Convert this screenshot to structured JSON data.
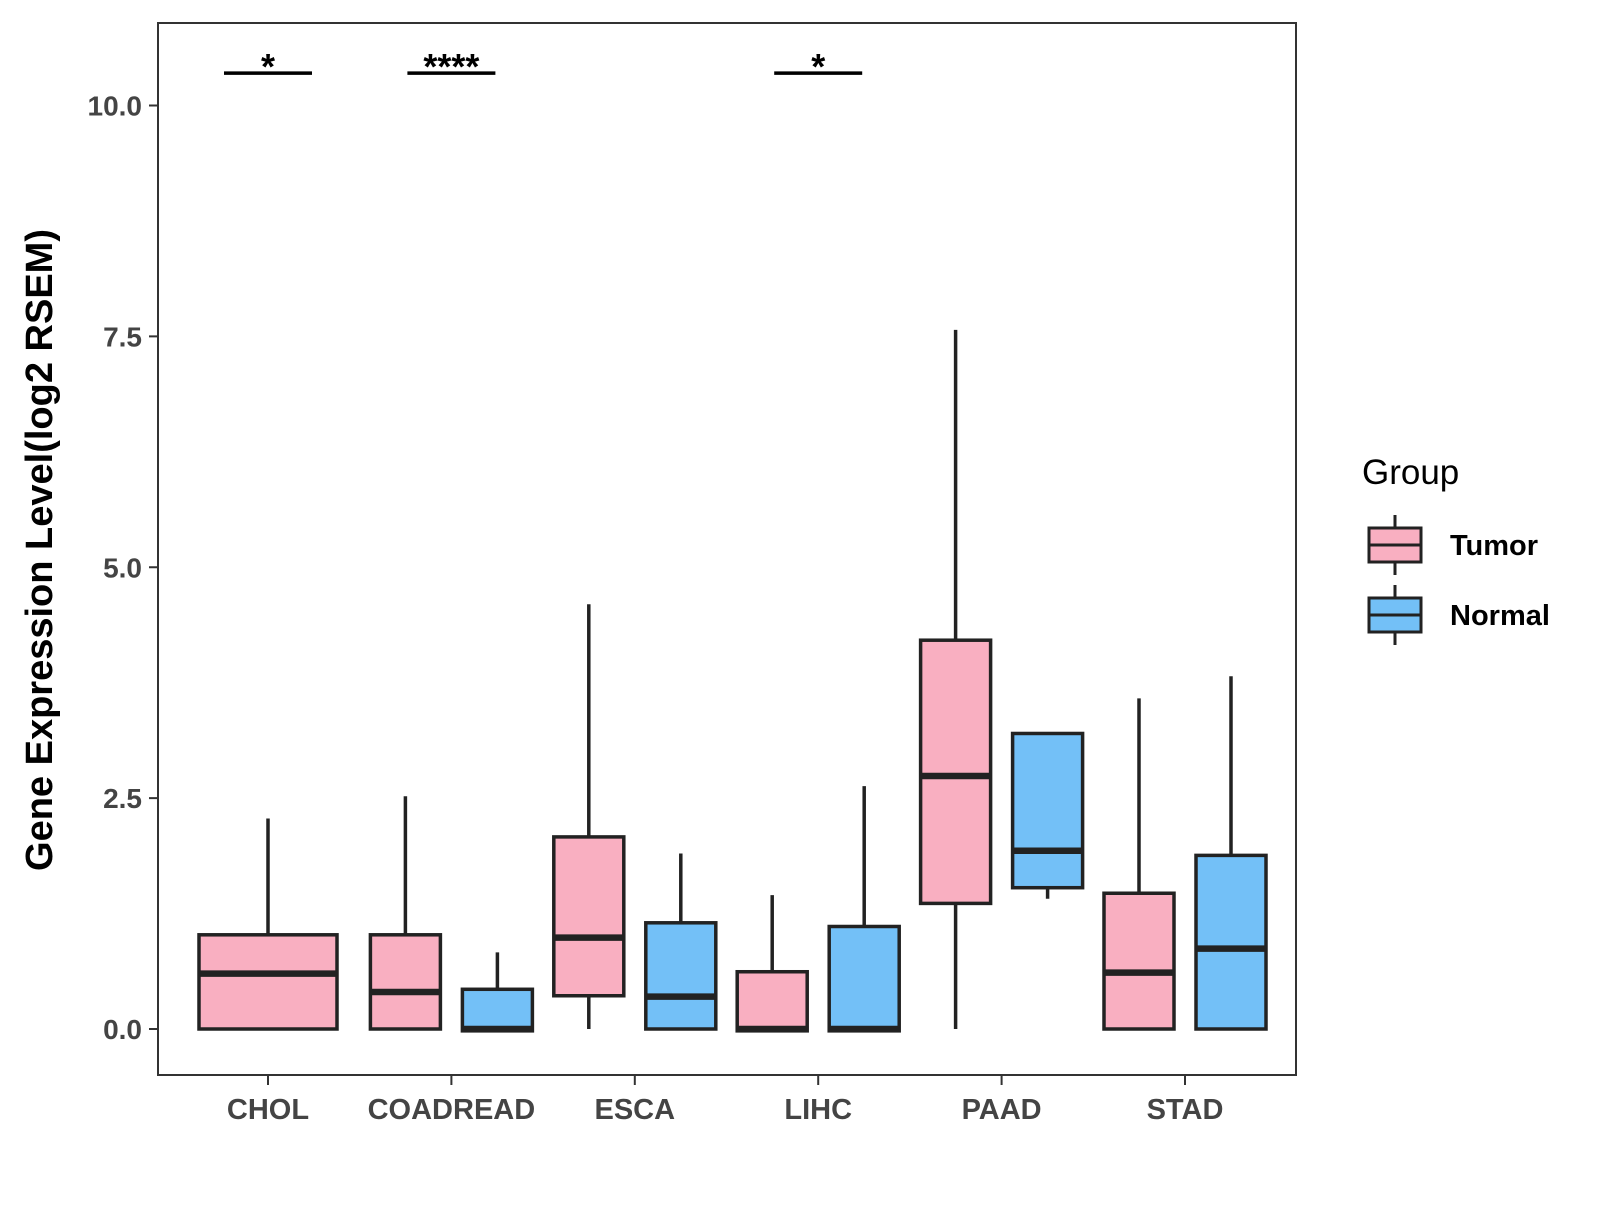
{
  "chart_data": {
    "type": "boxplot",
    "ylabel": "Gene Expression Level(log2 RSEM)",
    "xlabel": "",
    "ylim": [
      -0.5,
      10.8
    ],
    "yticks": [
      0.0,
      2.5,
      5.0,
      7.5,
      10.0
    ],
    "ytick_labels": [
      "0.0",
      "2.5",
      "5.0",
      "7.5",
      "10.0"
    ],
    "categories": [
      "CHOL",
      "COADREAD",
      "ESCA",
      "LIHC",
      "PAAD",
      "STAD"
    ],
    "legend": {
      "title": "Group",
      "position": "right",
      "entries": [
        {
          "name": "Tumor",
          "color": "#F9AFC1"
        },
        {
          "name": "Normal",
          "color": "#73C0F7"
        }
      ]
    },
    "boxes": [
      {
        "category": "CHOL",
        "group": "Tumor",
        "full_width": true,
        "whisker_low": 0.0,
        "q1": 0.0,
        "median": 0.6,
        "q3": 1.02,
        "whisker_high": 2.28
      },
      {
        "category": "COADREAD",
        "group": "Tumor",
        "whisker_low": 0.0,
        "q1": 0.0,
        "median": 0.4,
        "q3": 1.02,
        "whisker_high": 2.52
      },
      {
        "category": "COADREAD",
        "group": "Normal",
        "whisker_low": -0.02,
        "q1": -0.02,
        "median": 0.0,
        "q3": 0.43,
        "whisker_high": 0.83
      },
      {
        "category": "ESCA",
        "group": "Tumor",
        "whisker_low": 0.0,
        "q1": 0.36,
        "median": 0.99,
        "q3": 2.08,
        "whisker_high": 4.6
      },
      {
        "category": "ESCA",
        "group": "Normal",
        "whisker_low": 0.0,
        "q1": 0.0,
        "median": 0.35,
        "q3": 1.15,
        "whisker_high": 1.9
      },
      {
        "category": "LIHC",
        "group": "Tumor",
        "whisker_low": -0.02,
        "q1": -0.02,
        "median": 0.0,
        "q3": 0.62,
        "whisker_high": 1.45
      },
      {
        "category": "LIHC",
        "group": "Normal",
        "whisker_low": -0.02,
        "q1": -0.02,
        "median": 0.0,
        "q3": 1.11,
        "whisker_high": 2.63
      },
      {
        "category": "PAAD",
        "group": "Tumor",
        "whisker_low": 0.0,
        "q1": 1.36,
        "median": 2.74,
        "q3": 4.21,
        "whisker_high": 7.57
      },
      {
        "category": "PAAD",
        "group": "Normal",
        "whisker_low": 1.41,
        "q1": 1.53,
        "median": 1.93,
        "q3": 3.2,
        "whisker_high": 3.2
      },
      {
        "category": "STAD",
        "group": "Tumor",
        "whisker_low": 0.0,
        "q1": 0.0,
        "median": 0.61,
        "q3": 1.47,
        "whisker_high": 3.58
      },
      {
        "category": "STAD",
        "group": "Normal",
        "whisker_low": 0.0,
        "q1": 0.0,
        "median": 0.87,
        "q3": 1.88,
        "whisker_high": 3.82
      }
    ],
    "significance": [
      {
        "category": "CHOL",
        "label": "*",
        "y": 10.35
      },
      {
        "category": "COADREAD",
        "label": "****",
        "y": 10.35
      },
      {
        "category": "LIHC",
        "label": "*",
        "y": 10.35
      }
    ]
  }
}
